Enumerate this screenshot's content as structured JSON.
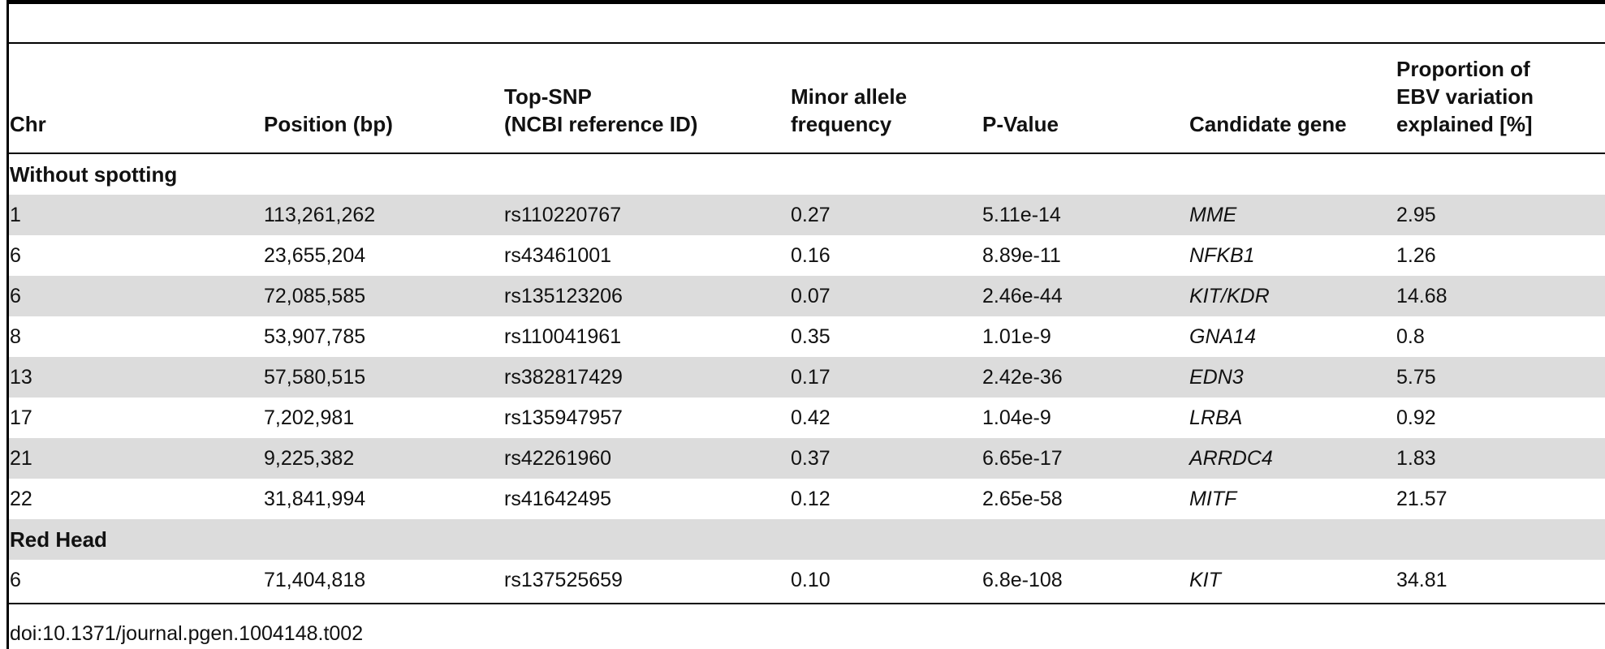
{
  "table": {
    "headers": {
      "chr": "Chr",
      "position": "Position (bp)",
      "top_snp": "Top-SNP\n(NCBI reference ID)",
      "maf": "Minor allele\nfrequency",
      "pvalue": "P-Value",
      "gene": "Candidate gene",
      "proportion": "Proportion of\nEBV variation\nexplained [%]"
    },
    "sections": [
      {
        "label": "Without spotting",
        "rows": [
          {
            "chr": "1",
            "position": "113,261,262",
            "snp": "rs110220767",
            "maf": "0.27",
            "pvalue": "5.11e-14",
            "gene": "MME",
            "proportion": "2.95"
          },
          {
            "chr": "6",
            "position": "23,655,204",
            "snp": "rs43461001",
            "maf": "0.16",
            "pvalue": "8.89e-11",
            "gene": "NFKB1",
            "proportion": "1.26"
          },
          {
            "chr": "6",
            "position": "72,085,585",
            "snp": "rs135123206",
            "maf": "0.07",
            "pvalue": "2.46e-44",
            "gene": "KIT/KDR",
            "proportion": "14.68"
          },
          {
            "chr": "8",
            "position": "53,907,785",
            "snp": "rs110041961",
            "maf": "0.35",
            "pvalue": "1.01e-9",
            "gene": "GNA14",
            "proportion": "0.8"
          },
          {
            "chr": "13",
            "position": "57,580,515",
            "snp": "rs382817429",
            "maf": "0.17",
            "pvalue": "2.42e-36",
            "gene": "EDN3",
            "proportion": "5.75"
          },
          {
            "chr": "17",
            "position": "7,202,981",
            "snp": "rs135947957",
            "maf": "0.42",
            "pvalue": "1.04e-9",
            "gene": "LRBA",
            "proportion": "0.92"
          },
          {
            "chr": "21",
            "position": "9,225,382",
            "snp": "rs42261960",
            "maf": "0.37",
            "pvalue": "6.65e-17",
            "gene": "ARRDC4",
            "proportion": "1.83"
          },
          {
            "chr": "22",
            "position": "31,841,994",
            "snp": "rs41642495",
            "maf": "0.12",
            "pvalue": "2.65e-58",
            "gene": "MITF",
            "proportion": "21.57"
          }
        ]
      },
      {
        "label": "Red Head",
        "rows": [
          {
            "chr": "6",
            "position": "71,404,818",
            "snp": "rs137525659",
            "maf": "0.10",
            "pvalue": "6.8e-108",
            "gene": "KIT",
            "proportion": "34.81"
          }
        ]
      }
    ]
  },
  "doi": "doi:10.1371/journal.pgen.1004148.t002",
  "colors": {
    "row_shade": "#dcdcdc",
    "rule": "#000000",
    "text": "#111111"
  }
}
